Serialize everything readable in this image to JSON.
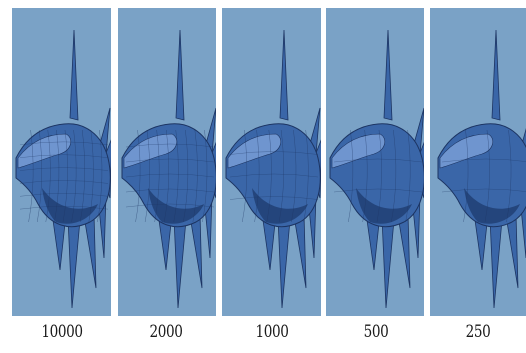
{
  "figure": {
    "panels": [
      {
        "label": "10000",
        "detail": "high"
      },
      {
        "label": "2000",
        "detail": "high"
      },
      {
        "label": "1000",
        "detail": "medium"
      },
      {
        "label": "500",
        "detail": "medium"
      },
      {
        "label": "250",
        "detail": "low"
      }
    ],
    "colors": {
      "background": "#7aa2c6",
      "mesh_fill": "#3a66a8",
      "mesh_dark": "#1f3d70",
      "mesh_light": "#6f95cf",
      "edge": "#1c3462"
    },
    "subject_icon": "fish-mesh-icon"
  }
}
